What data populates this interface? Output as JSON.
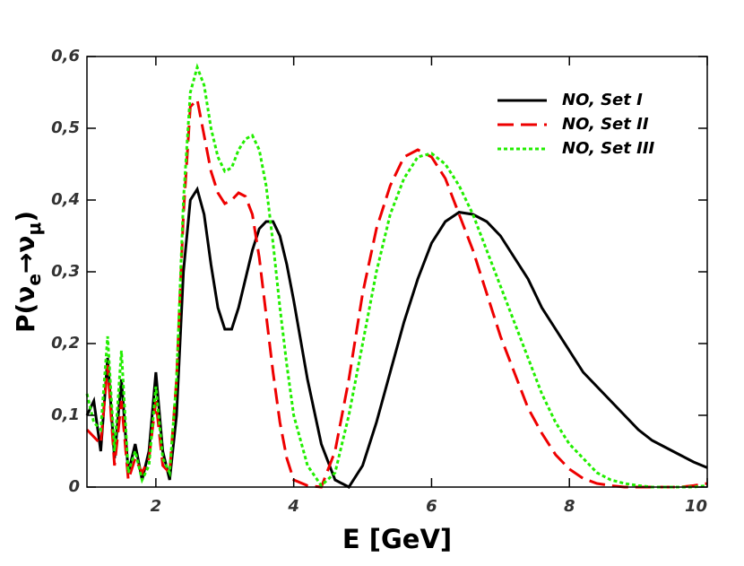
{
  "chart_data": {
    "type": "line",
    "xlabel": "E [GeV]",
    "ylabel_parts": [
      "P(ν",
      "e",
      "→ν",
      "μ",
      ")"
    ],
    "x": [
      1.0,
      1.1,
      1.2,
      1.3,
      1.4,
      1.5,
      1.6,
      1.7,
      1.8,
      1.9,
      2.0,
      2.1,
      2.2,
      2.3,
      2.4,
      2.5,
      2.6,
      2.7,
      2.8,
      2.9,
      3.0,
      3.1,
      3.2,
      3.3,
      3.4,
      3.5,
      3.6,
      3.7,
      3.8,
      3.9,
      4.0,
      4.2,
      4.4,
      4.6,
      4.8,
      5.0,
      5.2,
      5.4,
      5.6,
      5.8,
      6.0,
      6.2,
      6.4,
      6.6,
      6.8,
      7.0,
      7.2,
      7.4,
      7.6,
      7.8,
      8.0,
      8.2,
      8.4,
      8.6,
      8.8,
      9.0,
      9.2,
      9.4,
      9.6,
      9.8,
      10.0
    ],
    "series": [
      {
        "name": "NO, Set I",
        "color": "#000000",
        "dash": "solid",
        "values": [
          0.1,
          0.12,
          0.05,
          0.18,
          0.04,
          0.15,
          0.02,
          0.06,
          0.01,
          0.05,
          0.16,
          0.05,
          0.01,
          0.1,
          0.3,
          0.4,
          0.415,
          0.38,
          0.31,
          0.25,
          0.22,
          0.22,
          0.25,
          0.29,
          0.33,
          0.36,
          0.37,
          0.37,
          0.35,
          0.31,
          0.26,
          0.15,
          0.06,
          0.01,
          0.0,
          0.03,
          0.09,
          0.16,
          0.23,
          0.29,
          0.34,
          0.37,
          0.383,
          0.38,
          0.37,
          0.35,
          0.32,
          0.29,
          0.25,
          0.22,
          0.19,
          0.16,
          0.14,
          0.12,
          0.1,
          0.08,
          0.065,
          0.055,
          0.045,
          0.035,
          0.027
        ]
      },
      {
        "name": "NO, Set II",
        "color": "#ee0000",
        "dash": "dashed",
        "values": [
          0.08,
          0.07,
          0.06,
          0.17,
          0.03,
          0.12,
          0.01,
          0.04,
          0.02,
          0.04,
          0.12,
          0.03,
          0.02,
          0.15,
          0.38,
          0.53,
          0.54,
          0.49,
          0.44,
          0.41,
          0.395,
          0.4,
          0.41,
          0.405,
          0.38,
          0.32,
          0.24,
          0.16,
          0.09,
          0.04,
          0.01,
          0.002,
          0.0,
          0.05,
          0.15,
          0.27,
          0.36,
          0.42,
          0.46,
          0.47,
          0.46,
          0.43,
          0.38,
          0.33,
          0.27,
          0.21,
          0.16,
          0.11,
          0.075,
          0.045,
          0.025,
          0.012,
          0.005,
          0.002,
          0.0,
          0.0,
          0.0,
          0.0,
          0.0,
          0.002,
          0.005
        ]
      },
      {
        "name": "NO, Set III",
        "color": "#22ee00",
        "dash": "dotted",
        "values": [
          0.13,
          0.09,
          0.08,
          0.21,
          0.05,
          0.19,
          0.02,
          0.05,
          0.01,
          0.03,
          0.14,
          0.04,
          0.02,
          0.15,
          0.4,
          0.55,
          0.585,
          0.56,
          0.5,
          0.46,
          0.44,
          0.445,
          0.47,
          0.485,
          0.49,
          0.47,
          0.42,
          0.34,
          0.25,
          0.17,
          0.1,
          0.03,
          0.002,
          0.02,
          0.1,
          0.2,
          0.3,
          0.38,
          0.43,
          0.46,
          0.465,
          0.45,
          0.42,
          0.38,
          0.33,
          0.28,
          0.23,
          0.18,
          0.13,
          0.09,
          0.06,
          0.04,
          0.02,
          0.01,
          0.005,
          0.002,
          0.0,
          0.0,
          0.0,
          0.0,
          0.002
        ]
      }
    ],
    "xlim": [
      1,
      10
    ],
    "xticks": [
      2,
      4,
      6,
      8,
      10
    ],
    "ylim": [
      0,
      0.6
    ],
    "yticks": [
      0,
      {
        "value": 0.1,
        "label": "0,1"
      },
      {
        "value": 0.2,
        "label": "0,2"
      },
      {
        "value": 0.3,
        "label": "0,3"
      },
      {
        "value": 0.4,
        "label": "0,4"
      },
      {
        "value": 0.5,
        "label": "0,5"
      },
      {
        "value": 0.6,
        "label": "0,6"
      }
    ],
    "legend": "upper right",
    "grid": false
  }
}
